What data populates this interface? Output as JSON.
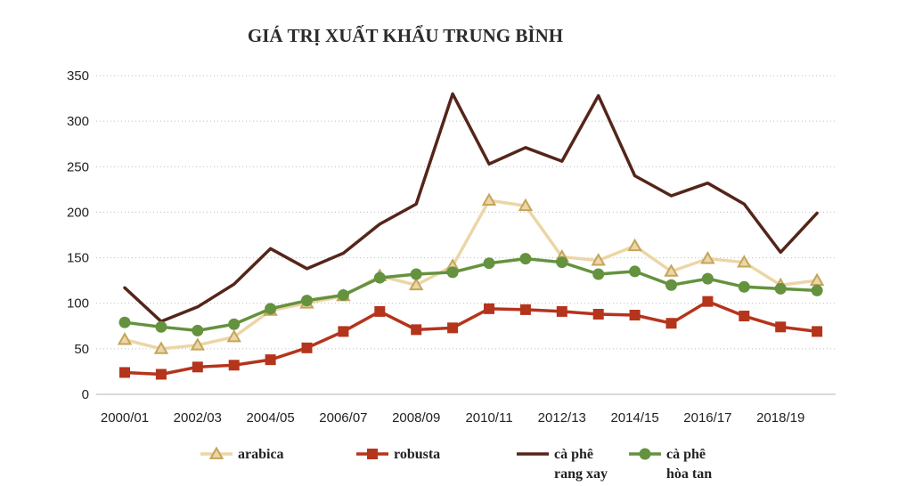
{
  "chart_data": {
    "type": "line",
    "title": "GIÁ TRỊ XUẤT KHẨU TRUNG BÌNH",
    "xlabel": "",
    "ylabel": "",
    "x": [
      "2000/01",
      "2001/02",
      "2002/03",
      "2003/04",
      "2004/05",
      "2005/06",
      "2006/07",
      "2007/08",
      "2008/09",
      "2009/10",
      "2010/11",
      "2011/12",
      "2012/13",
      "2013/14",
      "2014/15",
      "2015/16",
      "2016/17",
      "2017/18",
      "2018/19",
      "2019/20"
    ],
    "x_tick_labels": [
      "2000/01",
      "2002/03",
      "2004/05",
      "2006/07",
      "2008/09",
      "2010/11",
      "2012/13",
      "2014/15",
      "2016/17",
      "2018/19"
    ],
    "ylim": [
      0,
      350
    ],
    "y_ticks": [
      0,
      50,
      100,
      150,
      200,
      250,
      300,
      350
    ],
    "grid": true,
    "legend_position": "bottom",
    "series": [
      {
        "name": "arabica",
        "color": "#ecd6a6",
        "marker": "triangle",
        "marker_edge": "#c3a55a",
        "values": [
          60,
          50,
          54,
          63,
          92,
          100,
          108,
          130,
          120,
          141,
          213,
          207,
          151,
          147,
          163,
          135,
          149,
          145,
          120,
          125
        ]
      },
      {
        "name": "robusta",
        "color": "#b5341c",
        "marker": "square",
        "values": [
          24,
          22,
          30,
          32,
          38,
          51,
          69,
          91,
          71,
          73,
          94,
          93,
          91,
          88,
          87,
          78,
          102,
          86,
          74,
          69
        ]
      },
      {
        "name": "cà phê rang xay",
        "label_lines": [
          "cà phê",
          "rang xay"
        ],
        "color": "#55251a",
        "marker": "none",
        "values": [
          117,
          80,
          96,
          121,
          160,
          138,
          155,
          187,
          209,
          330,
          253,
          271,
          256,
          328,
          240,
          218,
          232,
          209,
          156,
          199
        ]
      },
      {
        "name": "cà phê hòa tan",
        "label_lines": [
          "cà phê",
          "hòa tan"
        ],
        "color": "#64923e",
        "marker": "circle",
        "values": [
          79,
          74,
          70,
          77,
          94,
          103,
          109,
          128,
          132,
          134,
          144,
          149,
          145,
          132,
          135,
          120,
          127,
          118,
          116,
          114
        ]
      }
    ]
  }
}
